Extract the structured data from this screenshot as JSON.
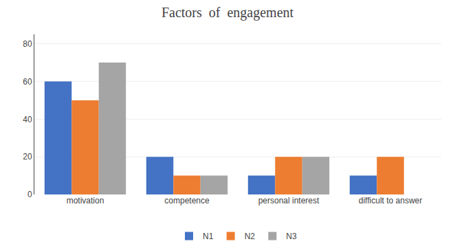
{
  "chart_data": {
    "type": "bar",
    "title": "Factors  of  engagement",
    "categories": [
      "motivation",
      "competence",
      "personal interest",
      "difficult to answer"
    ],
    "series": [
      {
        "name": "N1",
        "color": "#4472C4",
        "values": [
          60,
          20,
          10,
          10
        ]
      },
      {
        "name": "N2",
        "color": "#ED7D31",
        "values": [
          50,
          10,
          20,
          20
        ]
      },
      {
        "name": "N3",
        "color": "#A5A5A5",
        "values": [
          70,
          10,
          20,
          0
        ]
      }
    ],
    "ylim": [
      0,
      85
    ],
    "yticks": [
      0,
      20,
      40,
      60,
      80
    ],
    "grid": true,
    "legend": "bottom"
  }
}
